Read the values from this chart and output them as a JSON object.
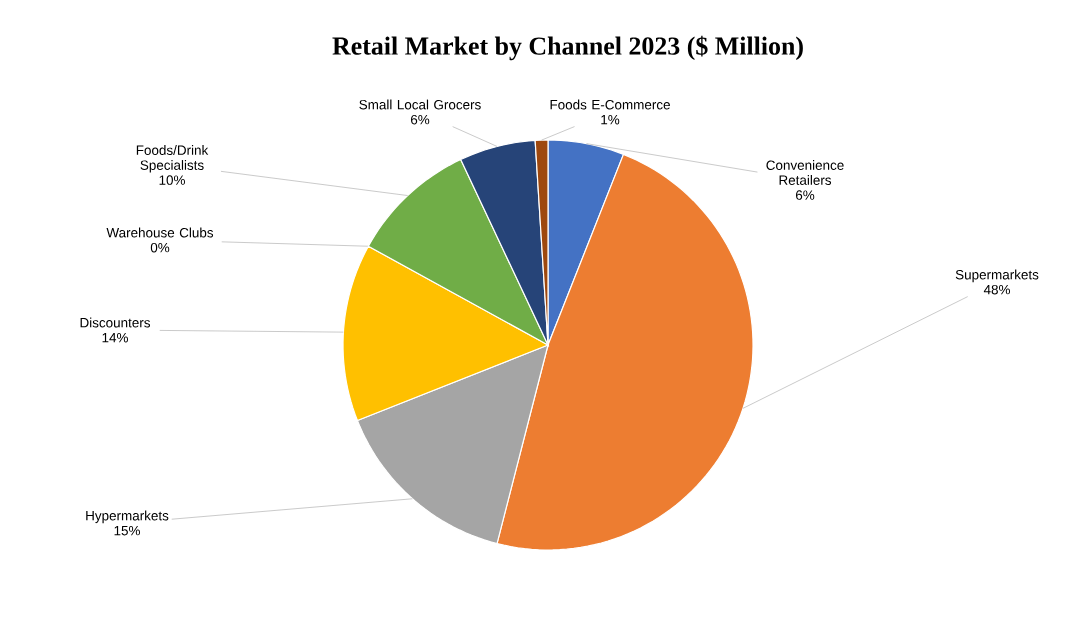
{
  "chart_data": {
    "type": "pie",
    "title": "Retail Market by Channel 2023 ($ Million)",
    "categories": [
      "Convenience Retailers",
      "Supermarkets",
      "Hypermarkets",
      "Discounters",
      "Warehouse Clubs",
      "Foods/Drink Specialists",
      "Small Local Grocers",
      "Foods E-Commerce"
    ],
    "values": [
      6,
      48,
      15,
      14,
      0,
      10,
      6,
      1
    ],
    "value_labels": [
      "6%",
      "48%",
      "15%",
      "14%",
      "0%",
      "10%",
      "6%",
      "1%"
    ],
    "colors": [
      "#4472c4",
      "#ed7d31",
      "#a5a5a5",
      "#ffc000",
      "#5b9bd5",
      "#70ad47",
      "#264478",
      "#9e480e"
    ]
  }
}
